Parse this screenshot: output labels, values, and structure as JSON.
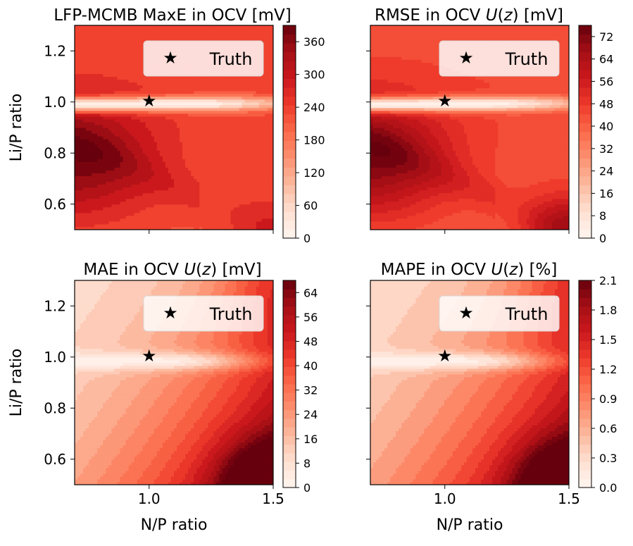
{
  "colors": {
    "truth_marker": "#0000ff",
    "cmap": [
      "#fff5f0",
      "#fee0d2",
      "#fcbba1",
      "#fc9272",
      "#fb6a4a",
      "#ef3b2c",
      "#cb181d",
      "#a50f15",
      "#67000d"
    ]
  },
  "chart_data": [
    {
      "type": "heatmap",
      "title": "LFP-MCMB MaxE in OCV [mV]",
      "title_parts": [
        {
          "text": "LFP-MCMB MaxE in OCV [mV]",
          "italic": false
        }
      ],
      "xlabel": "",
      "ylabel": "Li/P ratio",
      "xlim": [
        0.7,
        1.5
      ],
      "ylim": [
        0.5,
        1.3
      ],
      "xticks": [
        {
          "v": 1.0,
          "label": "1.0"
        },
        {
          "v": 1.5,
          "label": "1.5"
        }
      ],
      "yticks": [
        {
          "v": 0.6,
          "label": "0.6"
        },
        {
          "v": 0.8,
          "label": "0.8"
        },
        {
          "v": 1.0,
          "label": "1.0"
        },
        {
          "v": 1.2,
          "label": "1.2"
        }
      ],
      "show_xticklabels": false,
      "show_yticklabels": true,
      "truth": {
        "x": 1.0,
        "y": 1.0,
        "label": "Truth"
      },
      "colorbar": {
        "min": 0,
        "max": 390,
        "ticks": [
          0,
          60,
          120,
          180,
          240,
          300,
          360
        ],
        "labels": [
          "0",
          "60",
          "120",
          "180",
          "240",
          "300",
          "360"
        ]
      },
      "field": {
        "peak_x": 0.7,
        "peak_y": 0.78,
        "ridge_amp": 0.28,
        "min_x": 1.1,
        "min_y": 0.995,
        "corner_x": 1.5,
        "corner_y": 0.5
      }
    },
    {
      "type": "heatmap",
      "title": "RMSE in OCV U(z) [mV]",
      "title_parts": [
        {
          "text": "RMSE in OCV ",
          "italic": false
        },
        {
          "text": "U",
          "italic": true
        },
        {
          "text": "(",
          "italic": false
        },
        {
          "text": "z",
          "italic": true
        },
        {
          "text": ") [mV]",
          "italic": false
        }
      ],
      "xlabel": "",
      "ylabel": "",
      "xlim": [
        0.7,
        1.5
      ],
      "ylim": [
        0.5,
        1.3
      ],
      "xticks": [
        {
          "v": 1.0,
          "label": "1.0"
        },
        {
          "v": 1.5,
          "label": "1.5"
        }
      ],
      "yticks": [
        {
          "v": 0.6,
          "label": "0.6"
        },
        {
          "v": 0.8,
          "label": "0.8"
        },
        {
          "v": 1.0,
          "label": "1.0"
        },
        {
          "v": 1.2,
          "label": "1.2"
        }
      ],
      "show_xticklabels": false,
      "show_yticklabels": false,
      "truth": {
        "x": 1.0,
        "y": 1.0,
        "label": "Truth"
      },
      "colorbar": {
        "min": 0,
        "max": 76,
        "ticks": [
          0,
          8,
          16,
          24,
          32,
          40,
          48,
          56,
          64,
          72
        ],
        "labels": [
          "0",
          "8",
          "16",
          "24",
          "32",
          "40",
          "48",
          "56",
          "64",
          "72"
        ]
      },
      "field": {
        "peak_x": 0.7,
        "peak_y": 0.78,
        "ridge_amp": 0.24,
        "min_x": 0.9,
        "min_y": 0.99,
        "corner_x": 1.5,
        "corner_y": 0.5
      }
    },
    {
      "type": "heatmap",
      "title": "MAE in OCV U(z) [mV]",
      "title_parts": [
        {
          "text": "MAE in OCV ",
          "italic": false
        },
        {
          "text": "U",
          "italic": true
        },
        {
          "text": "(",
          "italic": false
        },
        {
          "text": "z",
          "italic": true
        },
        {
          "text": ") [mV]",
          "italic": false
        }
      ],
      "xlabel": "N/P ratio",
      "ylabel": "Li/P ratio",
      "xlim": [
        0.7,
        1.5
      ],
      "ylim": [
        0.5,
        1.3
      ],
      "xticks": [
        {
          "v": 1.0,
          "label": "1.0"
        },
        {
          "v": 1.5,
          "label": "1.5"
        }
      ],
      "yticks": [
        {
          "v": 0.6,
          "label": "0.6"
        },
        {
          "v": 0.8,
          "label": "0.8"
        },
        {
          "v": 1.0,
          "label": "1.0"
        },
        {
          "v": 1.2,
          "label": "1.2"
        }
      ],
      "show_xticklabels": true,
      "show_yticklabels": true,
      "truth": {
        "x": 1.0,
        "y": 1.0,
        "label": "Truth"
      },
      "colorbar": {
        "min": 0,
        "max": 68,
        "ticks": [
          0,
          8,
          16,
          24,
          32,
          40,
          48,
          56,
          64
        ],
        "labels": [
          "0",
          "8",
          "16",
          "24",
          "32",
          "40",
          "48",
          "56",
          "64"
        ]
      },
      "field": {
        "peak_x": 1.5,
        "peak_y": 0.5,
        "ridge_amp": 0.05,
        "min_x": 0.95,
        "min_y": 0.99,
        "corner_x": 1.5,
        "corner_y": 0.5
      }
    },
    {
      "type": "heatmap",
      "title": "MAPE in OCV U(z) [%]",
      "title_parts": [
        {
          "text": "MAPE in OCV ",
          "italic": false
        },
        {
          "text": "U",
          "italic": true
        },
        {
          "text": "(",
          "italic": false
        },
        {
          "text": "z",
          "italic": true
        },
        {
          "text": ") [%]",
          "italic": false
        }
      ],
      "xlabel": "N/P ratio",
      "ylabel": "",
      "xlim": [
        0.7,
        1.5
      ],
      "ylim": [
        0.5,
        1.3
      ],
      "xticks": [
        {
          "v": 1.0,
          "label": "1.0"
        },
        {
          "v": 1.5,
          "label": "1.5"
        }
      ],
      "yticks": [
        {
          "v": 0.6,
          "label": "0.6"
        },
        {
          "v": 0.8,
          "label": "0.8"
        },
        {
          "v": 1.0,
          "label": "1.0"
        },
        {
          "v": 1.2,
          "label": "1.2"
        }
      ],
      "show_xticklabels": true,
      "show_yticklabels": false,
      "truth": {
        "x": 1.0,
        "y": 1.0,
        "label": "Truth"
      },
      "colorbar": {
        "min": 0,
        "max": 2.1,
        "ticks": [
          0,
          0.3,
          0.6,
          0.9,
          1.2,
          1.5,
          1.8,
          2.1
        ],
        "labels": [
          "0.0",
          "0.3",
          "0.6",
          "0.9",
          "1.2",
          "1.5",
          "1.8",
          "2.1"
        ]
      },
      "field": {
        "peak_x": 1.5,
        "peak_y": 0.5,
        "ridge_amp": 0.05,
        "min_x": 0.95,
        "min_y": 0.99,
        "corner_x": 1.5,
        "corner_y": 0.5
      }
    }
  ]
}
